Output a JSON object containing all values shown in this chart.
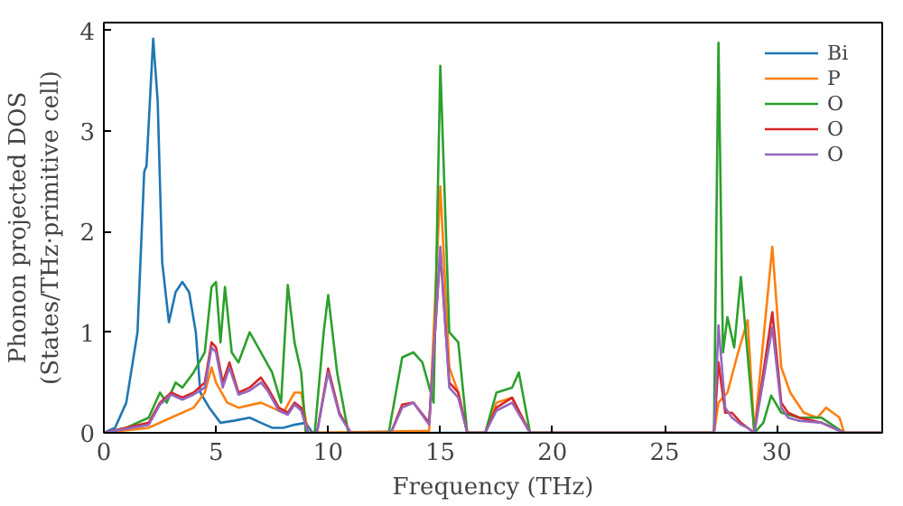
{
  "chart_data": {
    "type": "line",
    "xlabel": "Frequency (THz)",
    "ylabel": "Phonon projected DOS\n(States/THz·primitive cell)",
    "xlim": [
      0,
      34.7
    ],
    "ylim": [
      0,
      4.08
    ],
    "xticks": [
      0,
      5,
      10,
      15,
      20,
      25,
      30
    ],
    "yticks": [
      0,
      1,
      2,
      3,
      4
    ],
    "grid": false,
    "legend": "top right",
    "marker": "none",
    "line_style": "solid",
    "series": [
      {
        "name": "Bi",
        "color": "#1f77b4",
        "x": [
          0,
          0.5,
          1,
          1.5,
          1.8,
          1.9,
          2.2,
          2.4,
          2.6,
          2.9,
          3.2,
          3.5,
          3.8,
          4.1,
          4.3,
          4.7,
          5.2,
          5.8,
          6.5,
          7,
          7.5,
          8,
          8.5,
          9.0,
          9.3,
          34.7
        ],
        "values": [
          0,
          0.05,
          0.3,
          1.0,
          2.6,
          2.65,
          3.92,
          3.3,
          1.7,
          1.1,
          1.4,
          1.5,
          1.4,
          1.0,
          0.4,
          0.25,
          0.1,
          0.12,
          0.15,
          0.1,
          0.05,
          0.05,
          0.08,
          0.1,
          0,
          0
        ]
      },
      {
        "name": "P",
        "color": "#ff7f0e",
        "x": [
          0,
          2,
          3,
          4,
          4.5,
          4.8,
          5,
          5.5,
          6,
          7,
          7.5,
          8,
          8.5,
          8.8,
          9.1,
          14.5,
          15.0,
          15.4,
          15.8,
          16.2,
          17,
          17.5,
          18.2,
          19,
          27.2,
          27.4,
          27.8,
          28.3,
          28.7,
          29.0,
          29.8,
          30.2,
          30.6,
          31.2,
          31.8,
          32.2,
          32.8,
          33.0,
          34.7
        ],
        "values": [
          0,
          0.05,
          0.15,
          0.25,
          0.4,
          0.65,
          0.5,
          0.3,
          0.25,
          0.3,
          0.25,
          0.2,
          0.4,
          0.4,
          0,
          0.02,
          2.45,
          0.65,
          0.4,
          0,
          0,
          0.3,
          0.35,
          0,
          0,
          0.3,
          0.4,
          0.82,
          1.12,
          0,
          1.85,
          0.65,
          0.4,
          0.2,
          0.15,
          0.25,
          0.15,
          0,
          0
        ]
      },
      {
        "name": "O",
        "color": "#2ca02c",
        "x": [
          0,
          1,
          2,
          2.5,
          2.8,
          3.2,
          3.5,
          4,
          4.5,
          4.8,
          5,
          5.2,
          5.4,
          5.7,
          6,
          6.5,
          7,
          7.5,
          7.9,
          8.2,
          8.5,
          8.8,
          9.0,
          9.4,
          9.8,
          10.0,
          10.4,
          10.9,
          12.7,
          13.3,
          13.8,
          14.2,
          14.7,
          15.0,
          15.4,
          15.8,
          16.2,
          17.0,
          17.5,
          18.2,
          18.5,
          19.0,
          27.2,
          27.4,
          27.6,
          27.8,
          28.1,
          28.4,
          29.0,
          29.4,
          29.75,
          30.2,
          31,
          32,
          33.0,
          34.7
        ],
        "values": [
          0,
          0.05,
          0.15,
          0.4,
          0.3,
          0.5,
          0.45,
          0.6,
          0.8,
          1.45,
          1.5,
          0.9,
          1.45,
          0.8,
          0.7,
          1.0,
          0.8,
          0.6,
          0.3,
          1.47,
          0.9,
          0.6,
          0,
          0,
          1.0,
          1.37,
          0.6,
          0,
          0,
          0.75,
          0.8,
          0.7,
          0.3,
          3.65,
          1.0,
          0.9,
          0,
          0,
          0.4,
          0.45,
          0.6,
          0,
          0,
          3.88,
          0.8,
          1.15,
          0.85,
          1.55,
          0,
          0.1,
          0.37,
          0.2,
          0.15,
          0.15,
          0,
          0
        ]
      },
      {
        "name": "O",
        "color": "#d62728",
        "x": [
          0,
          2,
          2.5,
          3,
          3.5,
          4,
          4.5,
          4.8,
          5,
          5.3,
          5.6,
          6,
          6.5,
          7,
          7.3,
          7.8,
          8.2,
          8.5,
          8.8,
          9.1,
          9.5,
          10,
          10.5,
          11,
          12.8,
          13.3,
          13.8,
          14.5,
          15,
          15.4,
          15.8,
          16.2,
          17,
          17.5,
          18.2,
          19,
          27.2,
          27.4,
          27.7,
          28,
          28.4,
          28.7,
          29,
          29.8,
          30.2,
          30.5,
          31,
          32,
          33,
          34.7
        ],
        "values": [
          0,
          0.1,
          0.3,
          0.4,
          0.35,
          0.4,
          0.5,
          0.9,
          0.85,
          0.5,
          0.7,
          0.4,
          0.45,
          0.55,
          0.45,
          0.25,
          0.2,
          0.3,
          0.25,
          0,
          0,
          0.64,
          0.2,
          0,
          0,
          0.28,
          0.3,
          0.1,
          1.8,
          0.5,
          0.4,
          0,
          0,
          0.25,
          0.35,
          0,
          0,
          0.7,
          0.2,
          0.2,
          0.1,
          0.05,
          0,
          1.2,
          0.3,
          0.2,
          0.15,
          0.1,
          0,
          0
        ]
      },
      {
        "name": "O",
        "color": "#9467bd",
        "x": [
          0,
          2,
          2.5,
          3,
          3.5,
          4,
          4.5,
          4.8,
          5,
          5.3,
          5.6,
          6,
          6.5,
          7,
          7.3,
          7.8,
          8.2,
          8.5,
          8.8,
          9.1,
          9.5,
          10,
          10.5,
          11,
          12.8,
          13.3,
          13.8,
          14.5,
          15,
          15.4,
          15.8,
          16.2,
          17,
          17.5,
          18.2,
          19,
          27.2,
          27.4,
          27.7,
          28,
          28.4,
          28.7,
          29,
          29.8,
          30.2,
          30.5,
          31,
          32,
          33,
          34.7
        ],
        "values": [
          0,
          0.08,
          0.28,
          0.38,
          0.33,
          0.38,
          0.45,
          0.85,
          0.8,
          0.45,
          0.65,
          0.38,
          0.42,
          0.5,
          0.42,
          0.22,
          0.18,
          0.28,
          0.22,
          0,
          0,
          0.6,
          0.18,
          0,
          0,
          0.25,
          0.3,
          0.08,
          1.85,
          0.45,
          0.35,
          0,
          0,
          0.22,
          0.3,
          0,
          0,
          1.07,
          0.25,
          0.15,
          0.08,
          0.05,
          0,
          1.05,
          0.25,
          0.15,
          0.12,
          0.1,
          0,
          0
        ]
      }
    ]
  }
}
